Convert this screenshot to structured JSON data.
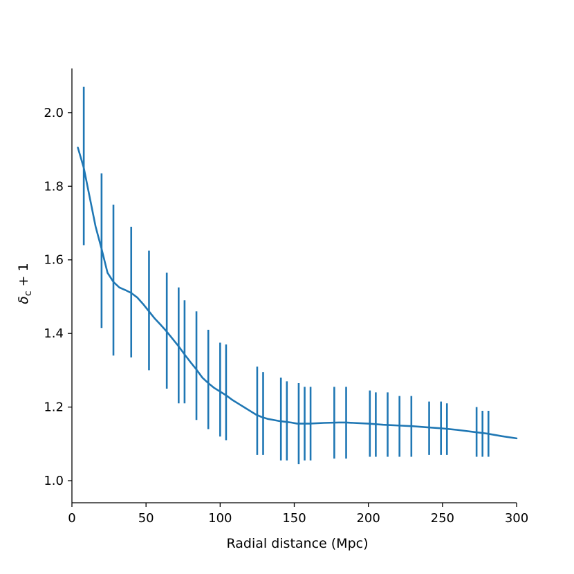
{
  "chart_data": {
    "type": "line",
    "title": "",
    "xlabel": "Radial distance (Mpc)",
    "ylabel_parts": {
      "symbol": "δ",
      "subscript": "c",
      "suffix": " + 1"
    },
    "xlim": [
      0,
      300
    ],
    "ylim": [
      0.94,
      2.12
    ],
    "xticks": [
      0,
      50,
      100,
      150,
      200,
      250,
      300
    ],
    "xtick_labels": [
      "0",
      "50",
      "100",
      "150",
      "200",
      "250",
      "300"
    ],
    "yticks": [
      1.0,
      1.2,
      1.4,
      1.6,
      1.8,
      2.0
    ],
    "ytick_labels": [
      "1.0",
      "1.2",
      "1.4",
      "1.6",
      "1.8",
      "2.0"
    ],
    "grid": false,
    "color": "#1f77b4",
    "line": {
      "x": [
        4,
        8,
        12,
        16,
        20,
        24,
        28,
        32,
        36,
        40,
        44,
        48,
        52,
        56,
        60,
        64,
        68,
        72,
        76,
        80,
        84,
        88,
        92,
        96,
        100,
        104,
        108,
        112,
        116,
        120,
        124,
        128,
        132,
        136,
        140,
        144,
        148,
        152,
        156,
        160,
        170,
        180,
        185,
        190,
        200,
        210,
        220,
        230,
        240,
        250,
        255,
        260,
        270,
        280,
        290,
        300
      ],
      "y": [
        1.905,
        1.85,
        1.77,
        1.69,
        1.63,
        1.565,
        1.54,
        1.525,
        1.518,
        1.51,
        1.498,
        1.48,
        1.46,
        1.44,
        1.423,
        1.405,
        1.385,
        1.365,
        1.343,
        1.322,
        1.302,
        1.28,
        1.265,
        1.252,
        1.242,
        1.232,
        1.22,
        1.21,
        1.2,
        1.19,
        1.18,
        1.173,
        1.168,
        1.165,
        1.162,
        1.16,
        1.158,
        1.155,
        1.155,
        1.155,
        1.157,
        1.158,
        1.158,
        1.157,
        1.155,
        1.152,
        1.15,
        1.148,
        1.145,
        1.142,
        1.14,
        1.138,
        1.133,
        1.128,
        1.121,
        1.115
      ]
    },
    "error_bars": [
      {
        "x": 8,
        "lo": 1.64,
        "hi": 2.07
      },
      {
        "x": 20,
        "lo": 1.415,
        "hi": 1.835
      },
      {
        "x": 28,
        "lo": 1.34,
        "hi": 1.75
      },
      {
        "x": 40,
        "lo": 1.335,
        "hi": 1.69
      },
      {
        "x": 52,
        "lo": 1.3,
        "hi": 1.625
      },
      {
        "x": 64,
        "lo": 1.25,
        "hi": 1.565
      },
      {
        "x": 72,
        "lo": 1.21,
        "hi": 1.525
      },
      {
        "x": 76,
        "lo": 1.21,
        "hi": 1.49
      },
      {
        "x": 84,
        "lo": 1.165,
        "hi": 1.46
      },
      {
        "x": 92,
        "lo": 1.14,
        "hi": 1.41
      },
      {
        "x": 100,
        "lo": 1.12,
        "hi": 1.375
      },
      {
        "x": 104,
        "lo": 1.11,
        "hi": 1.37
      },
      {
        "x": 125,
        "lo": 1.07,
        "hi": 1.31
      },
      {
        "x": 129,
        "lo": 1.07,
        "hi": 1.295
      },
      {
        "x": 141,
        "lo": 1.055,
        "hi": 1.28
      },
      {
        "x": 145,
        "lo": 1.055,
        "hi": 1.27
      },
      {
        "x": 153,
        "lo": 1.045,
        "hi": 1.265
      },
      {
        "x": 157,
        "lo": 1.055,
        "hi": 1.255
      },
      {
        "x": 161,
        "lo": 1.055,
        "hi": 1.255
      },
      {
        "x": 177,
        "lo": 1.06,
        "hi": 1.255
      },
      {
        "x": 185,
        "lo": 1.06,
        "hi": 1.255
      },
      {
        "x": 201,
        "lo": 1.065,
        "hi": 1.245
      },
      {
        "x": 205,
        "lo": 1.065,
        "hi": 1.24
      },
      {
        "x": 213,
        "lo": 1.065,
        "hi": 1.24
      },
      {
        "x": 221,
        "lo": 1.065,
        "hi": 1.23
      },
      {
        "x": 229,
        "lo": 1.065,
        "hi": 1.23
      },
      {
        "x": 241,
        "lo": 1.07,
        "hi": 1.215
      },
      {
        "x": 249,
        "lo": 1.07,
        "hi": 1.215
      },
      {
        "x": 253,
        "lo": 1.07,
        "hi": 1.21
      },
      {
        "x": 273,
        "lo": 1.065,
        "hi": 1.2
      },
      {
        "x": 277,
        "lo": 1.065,
        "hi": 1.19
      },
      {
        "x": 281,
        "lo": 1.065,
        "hi": 1.19
      }
    ]
  }
}
